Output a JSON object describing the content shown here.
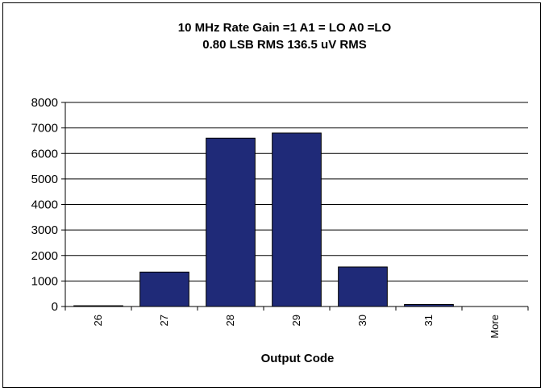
{
  "chart_data": {
    "type": "bar",
    "title": [
      "10 MHz Rate   Gain =1      A1 = LO   A0 =LO",
      "0.80 LSB RMS      136.5 uV RMS"
    ],
    "xlabel": "Output Code",
    "ylabel": "",
    "categories": [
      "26",
      "27",
      "28",
      "29",
      "30",
      "31",
      "More"
    ],
    "values": [
      30,
      1350,
      6600,
      6800,
      1550,
      80,
      0
    ],
    "ylim": [
      0,
      8000
    ],
    "yticks": [
      0,
      1000,
      2000,
      3000,
      4000,
      5000,
      6000,
      7000,
      8000
    ],
    "grid": true,
    "legend": "none",
    "bar_color": "#1f2a78",
    "grid_color": "#000000"
  }
}
